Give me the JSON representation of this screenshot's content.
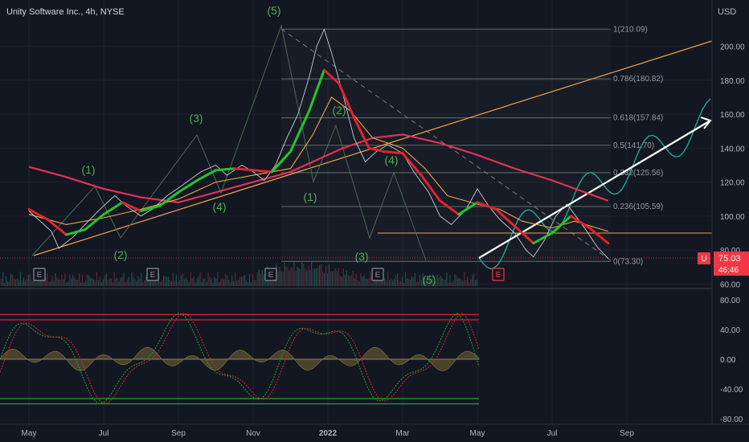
{
  "header": {
    "title": "Unity Software Inc., 4h, NYSE",
    "currency": "USD"
  },
  "price_axis": {
    "ticks": [
      "200.00",
      "180.00",
      "160.00",
      "140.00",
      "120.00",
      "100.00",
      "80.00",
      "60.00"
    ],
    "last_price": "75.03",
    "countdown": "46:46",
    "symbol_badge": "U"
  },
  "osc_axis": {
    "ticks": [
      "80.00",
      "40.00",
      "0.00",
      "-40.00",
      "-80.00"
    ]
  },
  "time_axis": {
    "ticks": [
      "May",
      "Jul",
      "Sep",
      "Nov",
      "2022",
      "Mar",
      "May",
      "Jul",
      "Sep"
    ]
  },
  "fib_levels": [
    {
      "label": "1(210.09)",
      "value": 210.09
    },
    {
      "label": "0.786(180.82)",
      "value": 180.82
    },
    {
      "label": "0.618(157.84)",
      "value": 157.84
    },
    {
      "label": "0.5(141.70)",
      "value": 141.7
    },
    {
      "label": "0.382(125.56)",
      "value": 125.56
    },
    {
      "label": "0.236(105.59)",
      "value": 105.59
    },
    {
      "label": "0(73.30)",
      "value": 73.3
    }
  ],
  "wave_labels": [
    "(1)",
    "(2)",
    "(3)",
    "(4)",
    "(5)",
    "(1)",
    "(2)",
    "(3)",
    "(4)",
    "(5)"
  ],
  "earnings_badges": [
    "E",
    "E",
    "E",
    "E",
    "E"
  ],
  "colors": {
    "background": "#131722",
    "price_line": "#d1d4dc",
    "ema_up": "#22c52e",
    "ema_down": "#e0232e",
    "ma_orange": "#f0a34a",
    "ma_slow": "#e0315a",
    "fib": "#6b7a75",
    "trendline": "#f0a34a",
    "projection": "#ffffff",
    "wave_path": "#1fa89a",
    "badge": "#f23645"
  },
  "chart_data": {
    "type": "line",
    "title": "Unity Software Inc., 4h, NYSE",
    "ylabel": "USD",
    "ylim": [
      56,
      222
    ],
    "x_ticks": [
      "May",
      "Jul",
      "Sep",
      "Nov",
      "2022",
      "Mar",
      "May",
      "Jul",
      "Sep"
    ],
    "series": [
      {
        "values": [
          [
            0,
            103
          ],
          [
            0.3,
            97
          ],
          [
            0.6,
            91
          ],
          [
            0.8,
            81
          ],
          [
            1.2,
            88
          ],
          [
            1.5,
            95
          ],
          [
            1.9,
            104
          ],
          [
            2.3,
            112
          ],
          [
            2.6,
            106
          ],
          [
            3,
            100
          ],
          [
            3.3,
            104
          ],
          [
            3.7,
            112
          ],
          [
            4.1,
            118
          ],
          [
            4.6,
            126
          ],
          [
            5,
            130
          ],
          [
            5.3,
            124
          ],
          [
            5.7,
            130
          ],
          [
            6,
            126
          ],
          [
            6.3,
            121
          ],
          [
            6.6,
            130
          ],
          [
            6.9,
            146
          ],
          [
            7.2,
            160
          ],
          [
            7.5,
            182
          ],
          [
            7.7,
            200
          ],
          [
            7.9,
            210
          ],
          [
            8.1,
            196
          ],
          [
            8.4,
            172
          ],
          [
            8.7,
            146
          ],
          [
            9,
            132
          ],
          [
            9.3,
            138
          ],
          [
            9.6,
            142
          ],
          [
            10,
            137
          ],
          [
            10.3,
            126
          ],
          [
            10.7,
            114
          ],
          [
            11,
            100
          ],
          [
            11.3,
            95
          ],
          [
            11.7,
            104
          ],
          [
            12,
            116
          ],
          [
            12.3,
            106
          ],
          [
            12.6,
            98
          ],
          [
            13,
            90
          ],
          [
            13.3,
            80
          ],
          [
            13.5,
            76
          ],
          [
            13.8,
            86
          ],
          [
            14.1,
            100
          ],
          [
            14.4,
            107
          ],
          [
            14.6,
            101
          ],
          [
            14.9,
            92
          ],
          [
            15.2,
            82
          ],
          [
            15.5,
            75.03
          ]
        ]
      },
      {
        "values": [
          [
            0,
            104
          ],
          [
            0.5,
            98
          ],
          [
            1,
            89
          ],
          [
            1.5,
            92
          ],
          [
            2,
            101
          ],
          [
            2.5,
            108
          ],
          [
            3,
            103
          ],
          [
            3.5,
            106
          ],
          [
            4,
            114
          ],
          [
            4.5,
            121
          ],
          [
            5,
            127
          ],
          [
            5.5,
            128
          ],
          [
            6,
            127
          ],
          [
            6.5,
            126
          ],
          [
            7,
            138
          ],
          [
            7.5,
            162
          ],
          [
            7.9,
            186
          ],
          [
            8.3,
            178
          ],
          [
            8.7,
            158
          ],
          [
            9.1,
            140
          ],
          [
            9.5,
            138
          ],
          [
            10,
            137
          ],
          [
            10.5,
            124
          ],
          [
            11,
            109
          ],
          [
            11.5,
            101
          ],
          [
            12,
            108
          ],
          [
            12.5,
            104
          ],
          [
            13,
            94
          ],
          [
            13.5,
            84
          ],
          [
            14,
            90
          ],
          [
            14.5,
            100
          ],
          [
            15,
            93
          ],
          [
            15.5,
            84
          ]
        ]
      },
      {
        "values": [
          [
            0,
            101
          ],
          [
            1,
            95
          ],
          [
            2,
            99
          ],
          [
            3,
            104
          ],
          [
            4,
            110
          ],
          [
            5,
            120
          ],
          [
            6,
            124
          ],
          [
            7,
            128
          ],
          [
            7.6,
            148
          ],
          [
            8.1,
            170
          ],
          [
            8.6,
            162
          ],
          [
            9.2,
            146
          ],
          [
            10,
            140
          ],
          [
            10.6,
            128
          ],
          [
            11.2,
            112
          ],
          [
            12,
            107
          ],
          [
            12.6,
            104
          ],
          [
            13.2,
            97
          ],
          [
            14,
            93
          ],
          [
            14.6,
            97
          ],
          [
            15.5,
            91
          ]
        ]
      },
      {
        "values": [
          [
            0,
            129
          ],
          [
            1,
            123
          ],
          [
            2,
            116
          ],
          [
            3,
            111
          ],
          [
            4,
            108
          ],
          [
            5,
            114
          ],
          [
            6,
            120
          ],
          [
            7,
            126
          ],
          [
            7.6,
            132
          ],
          [
            8.4,
            140
          ],
          [
            9.2,
            146
          ],
          [
            10,
            148
          ],
          [
            11,
            143
          ],
          [
            12,
            136
          ],
          [
            13,
            128
          ],
          [
            14,
            121
          ],
          [
            15,
            113
          ],
          [
            15.5,
            109
          ]
        ]
      }
    ],
    "fib_levels": [
      210.09,
      180.82,
      157.84,
      141.7,
      125.56,
      105.59,
      73.3
    ],
    "last_price": 75.03
  }
}
